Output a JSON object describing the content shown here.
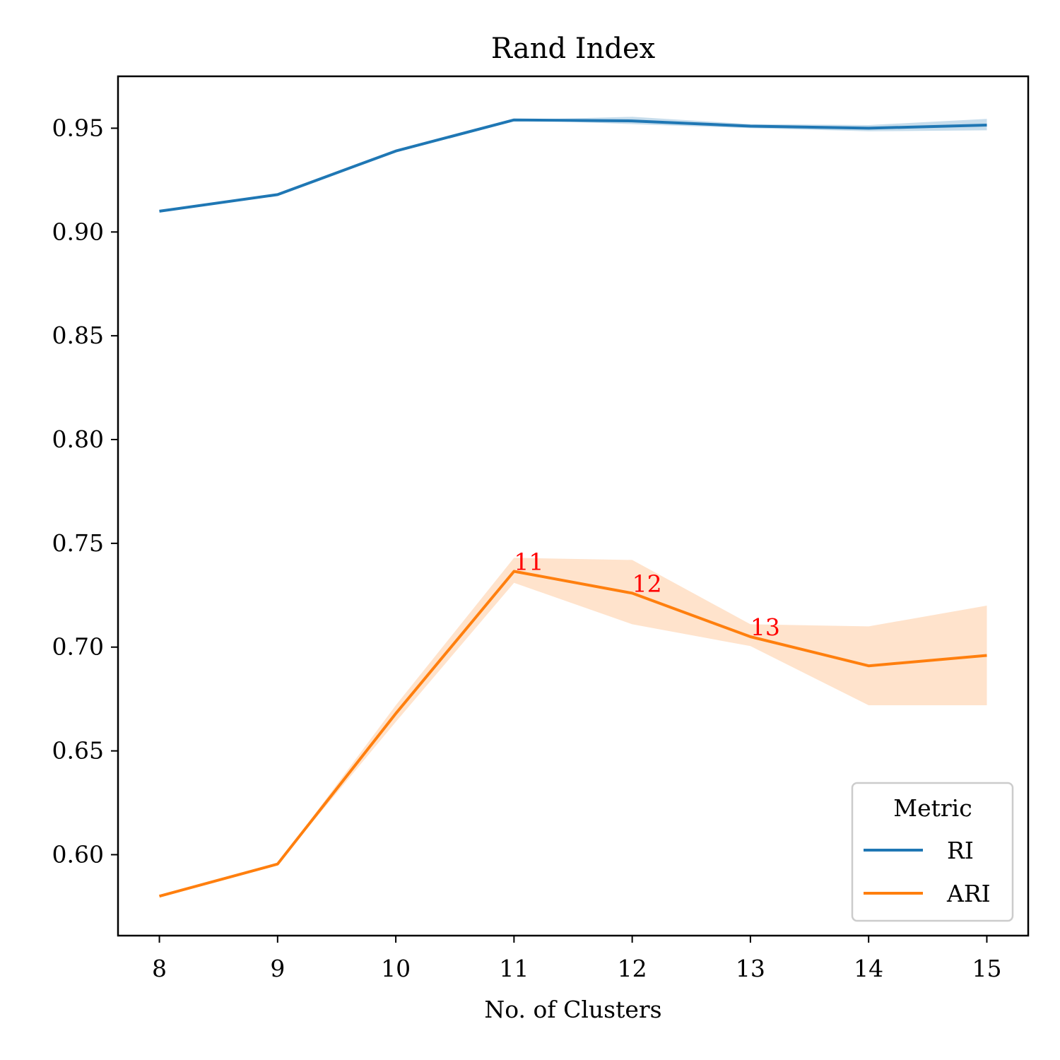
{
  "chart_data": {
    "type": "line",
    "title": "Rand Index",
    "xlabel": "No. of Clusters",
    "ylabel": "",
    "x": [
      8,
      9,
      10,
      11,
      12,
      13,
      14,
      15
    ],
    "xticks": [
      "8",
      "9",
      "10",
      "11",
      "12",
      "13",
      "14",
      "15"
    ],
    "xlim": [
      7.65,
      15.35
    ],
    "ylim": [
      0.561,
      0.975
    ],
    "yticks": [
      "0.60",
      "0.65",
      "0.70",
      "0.75",
      "0.80",
      "0.85",
      "0.90",
      "0.95"
    ],
    "ytick_values": [
      0.6,
      0.65,
      0.7,
      0.75,
      0.8,
      0.85,
      0.9,
      0.95
    ],
    "grid": false,
    "series": [
      {
        "name": "RI",
        "color": "#1f77b4",
        "values": [
          0.91,
          0.918,
          0.939,
          0.954,
          0.9535,
          0.951,
          0.95,
          0.9515
        ],
        "band_low": [
          0.91,
          0.918,
          0.939,
          0.954,
          0.952,
          0.95,
          0.9485,
          0.949
        ],
        "band_high": [
          0.91,
          0.918,
          0.939,
          0.954,
          0.9555,
          0.952,
          0.9515,
          0.9545
        ]
      },
      {
        "name": "ARI",
        "color": "#ff7f0e",
        "band_color": "#ffe3cc",
        "values": [
          0.58,
          0.5955,
          0.668,
          0.7365,
          0.726,
          0.705,
          0.691,
          0.696
        ],
        "band_low": [
          0.58,
          0.5955,
          0.664,
          0.731,
          0.711,
          0.7005,
          0.672,
          0.672
        ],
        "band_high": [
          0.58,
          0.5955,
          0.672,
          0.743,
          0.742,
          0.711,
          0.71,
          0.72
        ]
      }
    ],
    "annotations": [
      {
        "text": "11",
        "x": 11,
        "y": 0.7365
      },
      {
        "text": "12",
        "x": 12,
        "y": 0.726
      },
      {
        "text": "13",
        "x": 13,
        "y": 0.705
      }
    ],
    "annotation_color": "#ff0000",
    "legend": {
      "title": "Metric",
      "position": "lower right",
      "entries": [
        "RI",
        "ARI"
      ]
    }
  }
}
